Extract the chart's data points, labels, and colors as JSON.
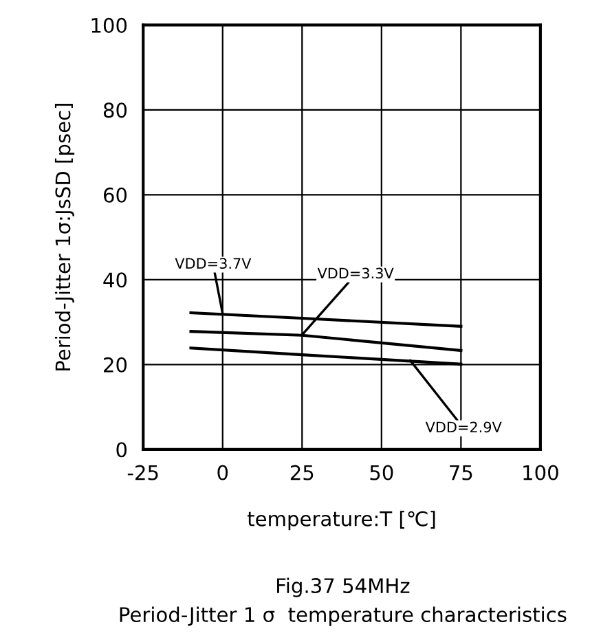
{
  "chart_data": {
    "type": "line",
    "xlabel": "temperature:T [℃]",
    "ylabel": "Period-Jitter 1σ:JsSD [psec]",
    "x": [
      -10,
      25,
      75
    ],
    "series": [
      {
        "color": "#000000",
        "values": [
          32.2,
          30.9,
          29.0
        ]
      },
      {
        "color": "#000000",
        "values": [
          27.8,
          26.9,
          23.3
        ]
      },
      {
        "color": "#000000",
        "values": [
          23.9,
          22.3,
          20.1
        ]
      }
    ],
    "xlim": [
      -25,
      100
    ],
    "xticks": [
      -25,
      0,
      25,
      50,
      75,
      100
    ],
    "ylim": [
      0,
      100
    ],
    "yticks": [
      0,
      20,
      40,
      60,
      80,
      100
    ],
    "grid": true,
    "marker": "none",
    "line_style": "solid",
    "annotations": [
      {
        "text": "VDD=3.7V",
        "x": 0,
        "y": 32
      },
      {
        "text": "VDD=3.3V",
        "x": 25,
        "y": 27
      },
      {
        "text": "VDD=2.9V",
        "x": 59,
        "y": 21
      },
      "Fig.37 54MHz",
      "Period-Jitter 1 σ  temperature characteristics"
    ]
  }
}
